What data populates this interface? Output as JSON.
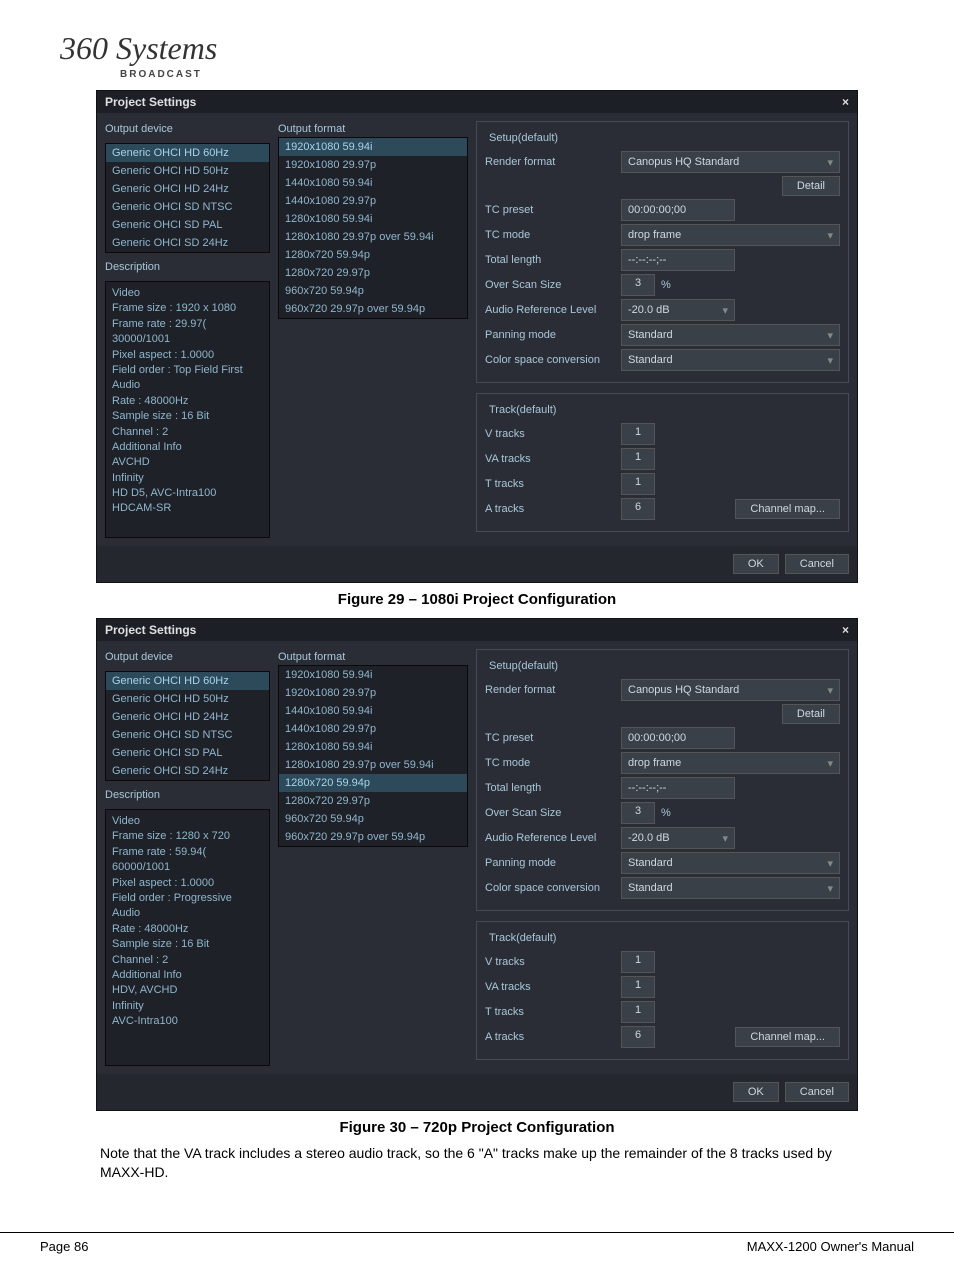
{
  "logo": {
    "main": "360 Systems",
    "sub": "BROADCAST"
  },
  "dialog1": {
    "title": "Project Settings",
    "output_device_label": "Output device",
    "output_format_label": "Output format",
    "description_label": "Description",
    "devices": [
      "Generic OHCI HD 60Hz",
      "Generic OHCI HD 50Hz",
      "Generic OHCI HD 24Hz",
      "Generic OHCI SD NTSC",
      "Generic OHCI SD PAL",
      "Generic OHCI SD 24Hz"
    ],
    "devices_selected_index": 0,
    "formats": [
      "1920x1080 59.94i",
      "1920x1080 29.97p",
      "1440x1080 59.94i",
      "1440x1080 29.97p",
      "1280x1080 59.94i",
      "1280x1080 29.97p over 59.94i",
      "1280x720 59.94p",
      "1280x720 29.97p",
      "960x720 59.94p",
      "960x720 29.97p over 59.94p"
    ],
    "formats_selected_index": 0,
    "description": "Video\nFrame size : 1920 x 1080\nFrame rate : 29.97( 30000/1001\nPixel aspect : 1.0000\nField order : Top Field First\nAudio\nRate : 48000Hz\nSample size : 16 Bit\nChannel : 2\nAdditional Info\nAVCHD\nInfinity\nHD D5, AVC-Intra100\nHDCAM-SR",
    "setup": {
      "legend": "Setup(default)",
      "render_format_label": "Render format",
      "render_format_value": "Canopus HQ Standard",
      "detail_btn": "Detail",
      "tc_preset_label": "TC preset",
      "tc_preset_value": "00:00:00;00",
      "tc_mode_label": "TC mode",
      "tc_mode_value": "drop frame",
      "total_length_label": "Total length",
      "total_length_value": "--:--:--;--",
      "overscan_label": "Over Scan Size",
      "overscan_value": "3",
      "overscan_unit": "%",
      "audio_ref_label": "Audio Reference Level",
      "audio_ref_value": "-20.0 dB",
      "panning_label": "Panning mode",
      "panning_value": "Standard",
      "colorspace_label": "Color space conversion",
      "colorspace_value": "Standard"
    },
    "track": {
      "legend": "Track(default)",
      "v_label": "V tracks",
      "v_value": "1",
      "va_label": "VA tracks",
      "va_value": "1",
      "t_label": "T tracks",
      "t_value": "1",
      "a_label": "A tracks",
      "a_value": "6",
      "channel_map_btn": "Channel map..."
    },
    "ok_btn": "OK",
    "cancel_btn": "Cancel"
  },
  "caption1": "Figure 29 – 1080i Project Configuration",
  "dialog2": {
    "title": "Project Settings",
    "devices_selected_index": 0,
    "formats_selected_index": 6,
    "description": "Video\nFrame size : 1280 x 720\nFrame rate : 59.94( 60000/1001\nPixel aspect : 1.0000\nField order : Progressive\nAudio\nRate : 48000Hz\nSample size : 16 Bit\nChannel : 2\nAdditional Info\nHDV, AVCHD\nInfinity\nAVC-Intra100"
  },
  "caption2": "Figure 30 – 720p Project Configuration",
  "body_text": "Note that the VA track includes a stereo audio track, so the 6 \"A\" tracks make up the remainder of the 8 tracks used by MAXX-HD.",
  "footer": {
    "left": "Page 86",
    "right": "MAXX-1200 Owner's Manual"
  }
}
